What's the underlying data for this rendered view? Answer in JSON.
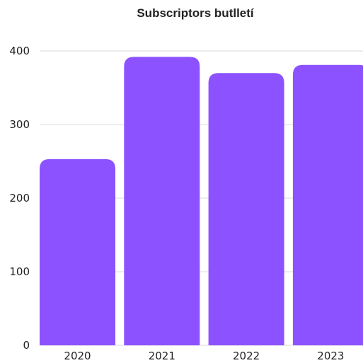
{
  "chart_data": {
    "type": "bar",
    "title": "Subscriptors butlletí",
    "xlabel": "",
    "ylabel": "",
    "categories": [
      "2020",
      "2021",
      "2022",
      "2023"
    ],
    "values": [
      253,
      392,
      370,
      381
    ],
    "ylim": [
      0,
      400
    ],
    "yticks": [
      0,
      100,
      200,
      300,
      400
    ],
    "grid": true,
    "legend": "none",
    "bar_color": "#8c52ff"
  }
}
